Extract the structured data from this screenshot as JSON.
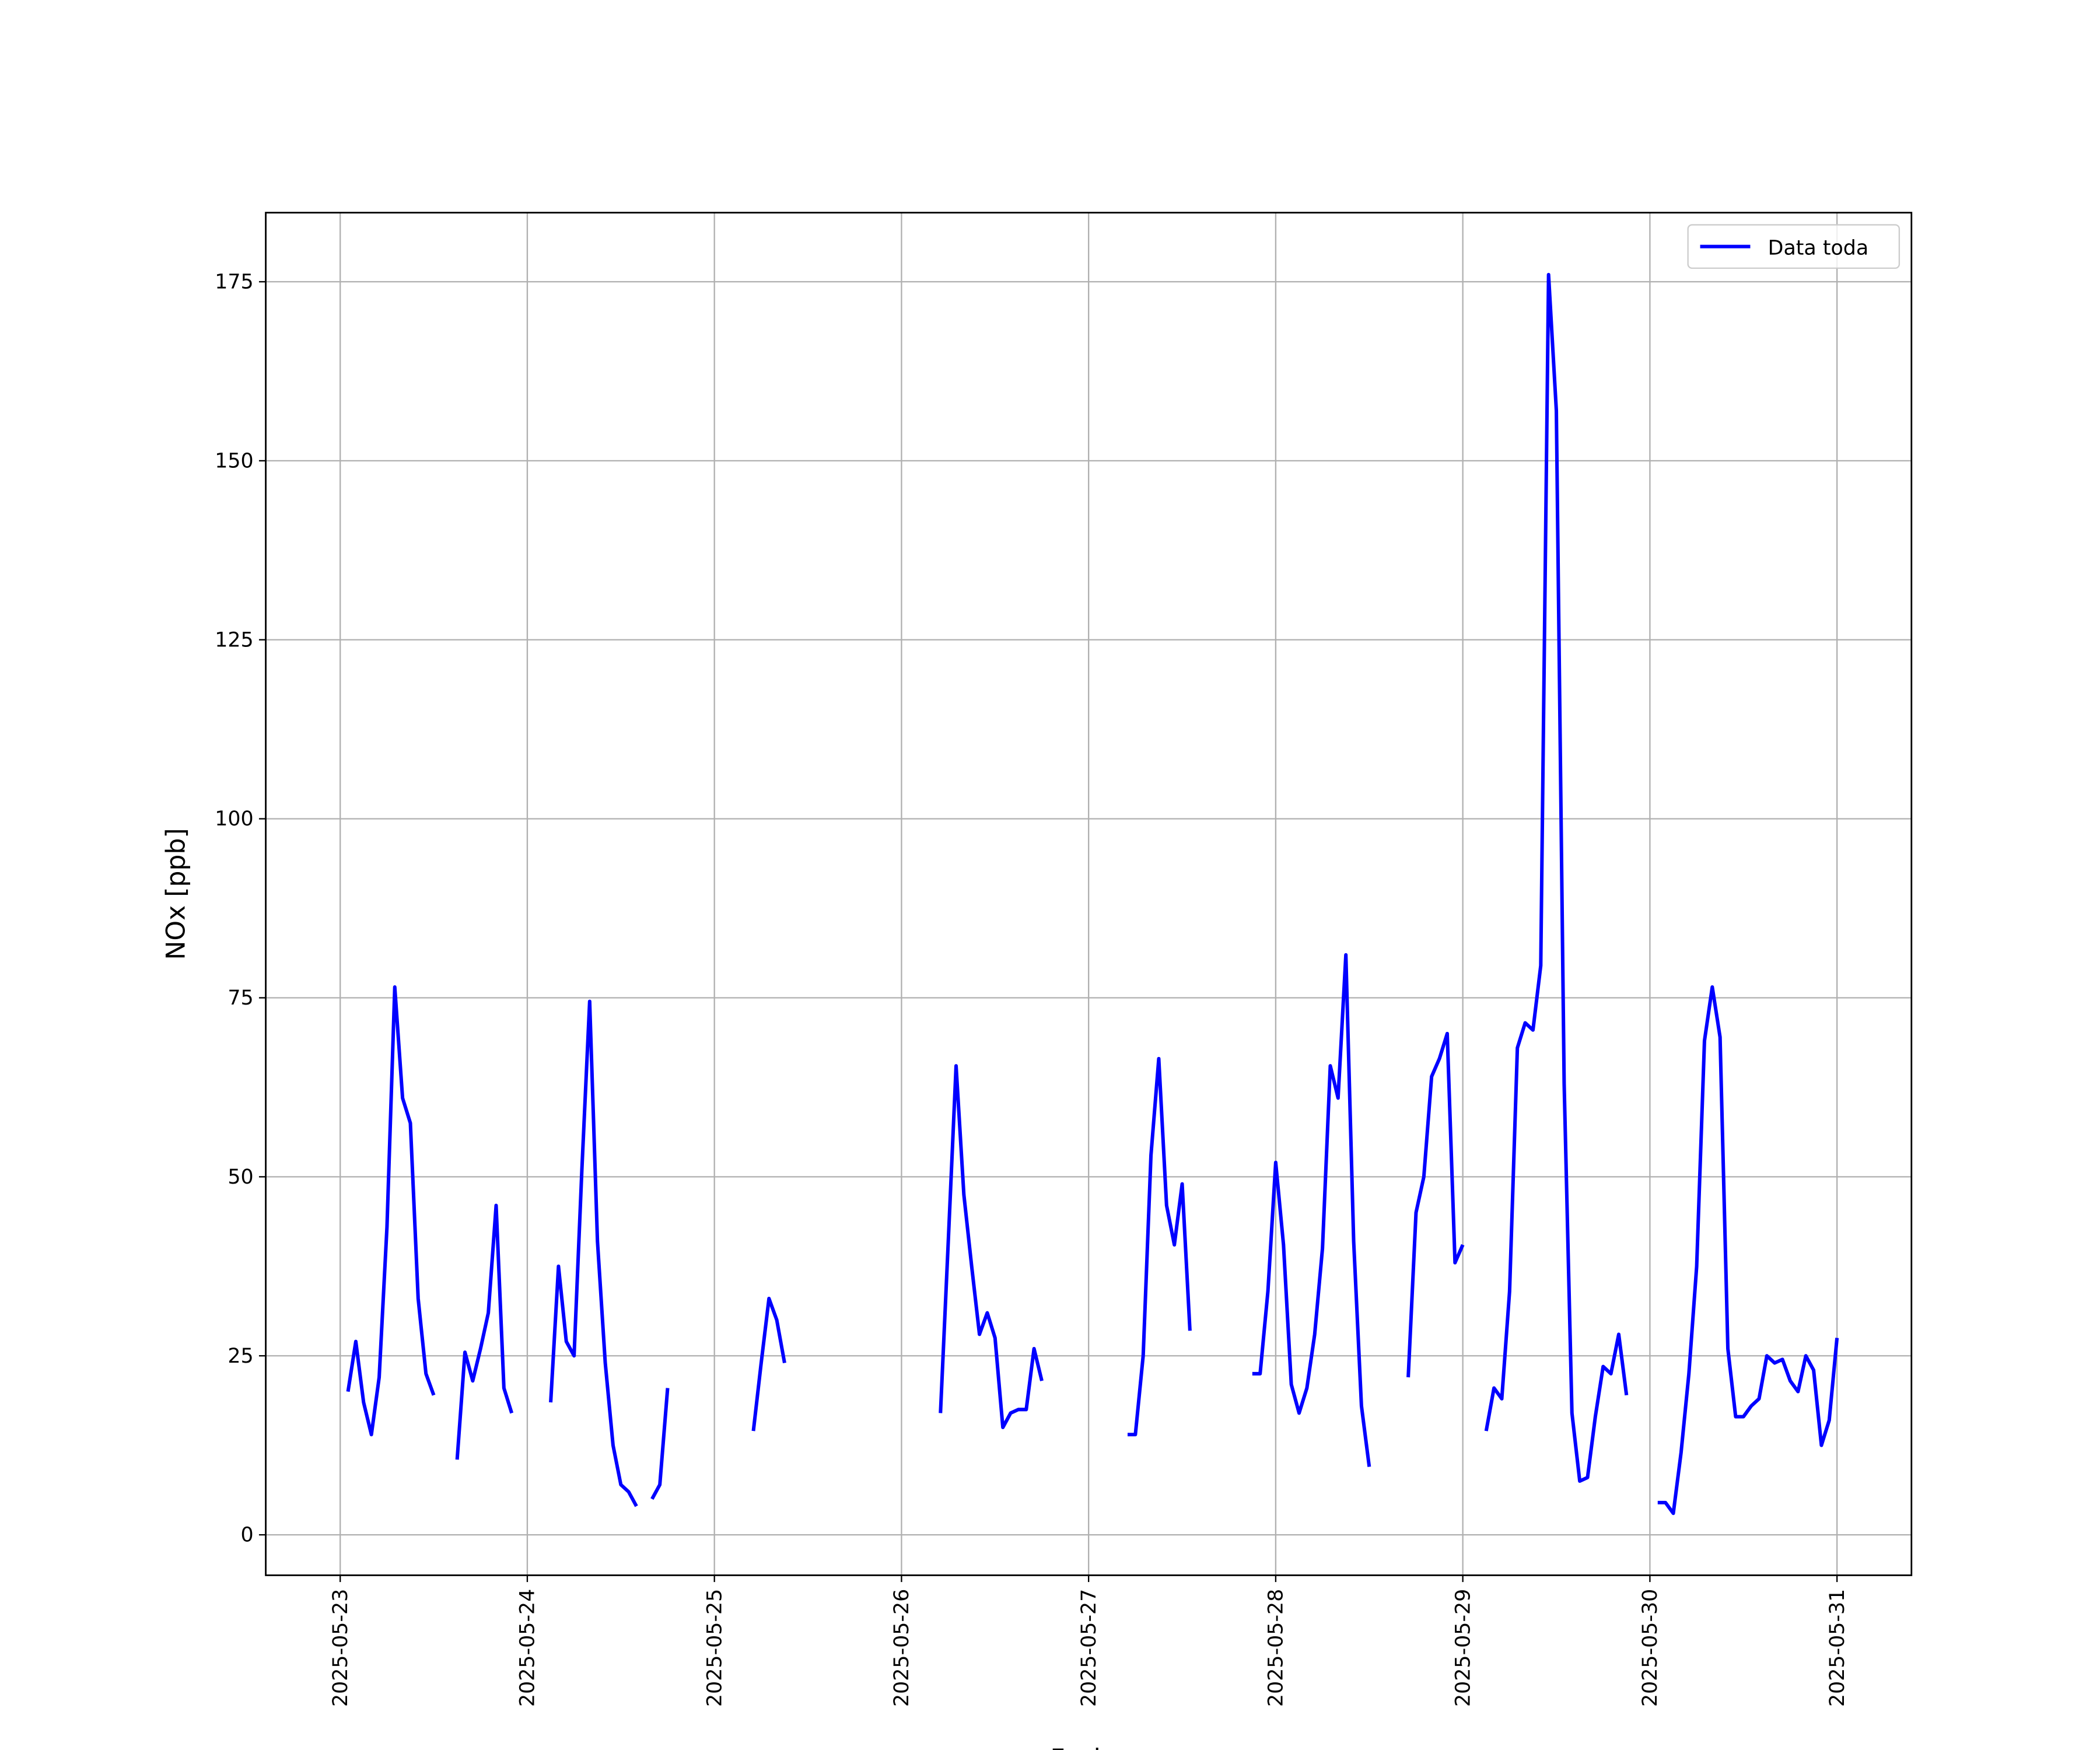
{
  "chart_data": {
    "type": "line",
    "xlabel": "Fecha",
    "ylabel": "NOx [ppb]",
    "xlim": [
      "2025-05-22 14:27",
      "2025-05-31 09:33"
    ],
    "xticks": [
      "2025-05-23",
      "2025-05-24",
      "2025-05-25",
      "2025-05-26",
      "2025-05-27",
      "2025-05-28",
      "2025-05-29",
      "2025-05-30",
      "2025-05-31"
    ],
    "ylim": [
      -5.65,
      184.65
    ],
    "yticks": [
      0,
      25,
      50,
      75,
      100,
      125,
      150,
      175
    ],
    "grid": true,
    "legend": "upper right",
    "x": [
      "2025-05-23 01:00",
      "2025-05-23 02:00",
      "2025-05-23 03:00",
      "2025-05-23 04:00",
      "2025-05-23 05:00",
      "2025-05-23 06:00",
      "2025-05-23 07:00",
      "2025-05-23 08:00",
      "2025-05-23 09:00",
      "2025-05-23 10:00",
      "2025-05-23 11:00",
      "2025-05-23 12:00",
      "2025-05-23 13:00",
      "2025-05-23 15:00",
      "2025-05-23 16:00",
      "2025-05-23 17:00",
      "2025-05-23 18:00",
      "2025-05-23 19:00",
      "2025-05-23 20:00",
      "2025-05-23 21:00",
      "2025-05-23 22:00",
      "2025-05-23 23:00",
      "2025-05-24 03:00",
      "2025-05-24 04:00",
      "2025-05-24 05:00",
      "2025-05-24 06:00",
      "2025-05-24 07:00",
      "2025-05-24 08:00",
      "2025-05-24 09:00",
      "2025-05-24 10:00",
      "2025-05-24 11:00",
      "2025-05-24 12:00",
      "2025-05-24 13:00",
      "2025-05-24 14:00",
      "2025-05-24 15:00",
      "2025-05-24 16:00",
      "2025-05-24 17:00",
      "2025-05-24 18:00",
      "2025-05-24 19:00",
      "2025-05-25 05:00",
      "2025-05-25 06:00",
      "2025-05-25 07:00",
      "2025-05-25 08:00",
      "2025-05-25 09:00",
      "2025-05-25 10:00",
      "2025-05-26 05:00",
      "2025-05-26 06:00",
      "2025-05-26 07:00",
      "2025-05-26 08:00",
      "2025-05-26 09:00",
      "2025-05-26 10:00",
      "2025-05-26 11:00",
      "2025-05-26 12:00",
      "2025-05-26 13:00",
      "2025-05-26 14:00",
      "2025-05-26 15:00",
      "2025-05-26 16:00",
      "2025-05-26 17:00",
      "2025-05-26 18:00",
      "2025-05-26 19:00",
      "2025-05-27 05:00",
      "2025-05-27 06:00",
      "2025-05-27 07:00",
      "2025-05-27 08:00",
      "2025-05-27 09:00",
      "2025-05-27 10:00",
      "2025-05-27 11:00",
      "2025-05-27 12:00",
      "2025-05-27 13:00",
      "2025-05-27 14:00",
      "2025-05-27 21:00",
      "2025-05-27 22:00",
      "2025-05-27 23:00",
      "2025-05-28 00:00",
      "2025-05-28 01:00",
      "2025-05-28 02:00",
      "2025-05-28 03:00",
      "2025-05-28 04:00",
      "2025-05-28 05:00",
      "2025-05-28 06:00",
      "2025-05-28 07:00",
      "2025-05-28 08:00",
      "2025-05-28 09:00",
      "2025-05-28 10:00",
      "2025-05-28 11:00",
      "2025-05-28 12:00",
      "2025-05-28 13:00",
      "2025-05-28 17:00",
      "2025-05-28 18:00",
      "2025-05-28 19:00",
      "2025-05-28 20:00",
      "2025-05-28 21:00",
      "2025-05-28 22:00",
      "2025-05-28 23:00",
      "2025-05-29 00:00",
      "2025-05-29 01:00",
      "2025-05-29 03:00",
      "2025-05-29 04:00",
      "2025-05-29 05:00",
      "2025-05-29 06:00",
      "2025-05-29 07:00",
      "2025-05-29 08:00",
      "2025-05-29 09:00",
      "2025-05-29 10:00",
      "2025-05-29 11:00",
      "2025-05-29 12:00",
      "2025-05-29 13:00",
      "2025-05-29 14:00",
      "2025-05-29 15:00",
      "2025-05-29 16:00",
      "2025-05-29 17:00",
      "2025-05-29 18:00",
      "2025-05-29 19:00",
      "2025-05-29 20:00",
      "2025-05-29 21:00",
      "2025-05-29 22:00",
      "2025-05-30 01:00",
      "2025-05-30 02:00",
      "2025-05-30 03:00",
      "2025-05-30 04:00",
      "2025-05-30 05:00",
      "2025-05-30 06:00",
      "2025-05-30 07:00",
      "2025-05-30 08:00",
      "2025-05-30 09:00",
      "2025-05-30 10:00",
      "2025-05-30 11:00",
      "2025-05-30 12:00",
      "2025-05-30 13:00",
      "2025-05-30 14:00",
      "2025-05-30 15:00",
      "2025-05-30 16:00",
      "2025-05-30 17:00",
      "2025-05-30 18:00",
      "2025-05-30 19:00",
      "2025-05-30 20:00",
      "2025-05-30 21:00",
      "2025-05-30 22:00",
      "2025-05-30 23:00",
      "2025-05-31 00:00"
    ],
    "series": [
      {
        "name": "Data toda",
        "color": "#0000ff",
        "values": [
          20,
          27,
          18.5,
          14,
          22,
          43,
          76.5,
          61,
          57.5,
          33,
          22.5,
          19.5,
          null,
          10.5,
          25.5,
          21.5,
          26,
          31,
          46,
          20.5,
          17,
          null,
          18.5,
          37.5,
          27,
          25,
          51,
          74.5,
          41,
          24,
          12.5,
          7,
          6,
          4,
          null,
          5,
          7,
          20.5,
          null,
          14.5,
          24,
          33,
          30,
          24,
          null,
          17,
          41,
          65.5,
          47.5,
          37.5,
          28,
          31,
          27.5,
          15,
          17,
          17.5,
          17.5,
          26,
          21.5,
          null,
          14,
          14,
          25,
          53,
          66.5,
          46,
          40.5,
          49,
          28.5,
          null,
          22.5,
          22.5,
          34,
          52,
          40.5,
          21,
          17,
          20.5,
          28,
          40,
          65.5,
          61,
          81,
          41,
          18,
          9.5,
          null,
          22,
          45,
          50,
          64,
          66.5,
          70,
          38,
          40.5,
          null,
          14.5,
          20.5,
          19,
          34,
          68,
          71.5,
          70.5,
          79.5,
          176,
          157,
          63,
          17,
          7.5,
          8,
          16.5,
          23.5,
          22.5,
          28,
          19.5,
          null,
          4.5,
          4.5,
          3,
          11.5,
          22.5,
          37.5,
          69,
          76.5,
          69.5,
          26,
          16.5,
          16.5,
          18,
          19,
          25,
          24,
          24.5,
          21.5,
          20,
          25,
          23,
          12.5,
          16,
          27.5
        ]
      }
    ]
  }
}
